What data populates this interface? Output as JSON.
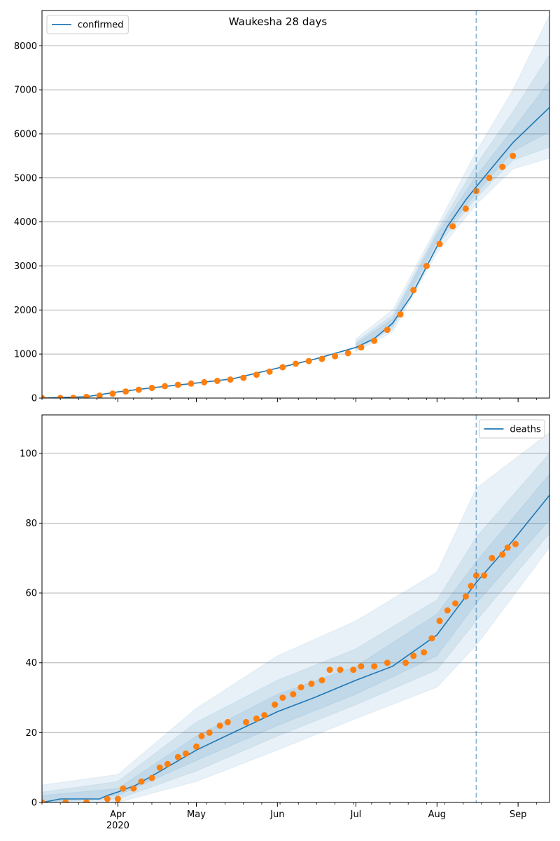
{
  "chart_data": [
    {
      "type": "line",
      "title": "Waukesha 28 days",
      "legend": {
        "label": "confirmed",
        "placement": "top-left"
      },
      "x_ticks": [],
      "y_ticks": [
        "0",
        "1000",
        "2000",
        "3000",
        "4000",
        "5000",
        "6000",
        "7000",
        "8000"
      ],
      "ylim": [
        0,
        8800
      ],
      "grid": "horizontal",
      "vline_date": "2020-08-16",
      "colors": {
        "model": "#1f77b4",
        "observed": "#ff7f0e",
        "band": "#1f77b4"
      },
      "model_line": [
        [
          "2020-03-03",
          0
        ],
        [
          "2020-03-20",
          30
        ],
        [
          "2020-04-01",
          140
        ],
        [
          "2020-04-15",
          240
        ],
        [
          "2020-05-01",
          340
        ],
        [
          "2020-05-15",
          440
        ],
        [
          "2020-06-01",
          680
        ],
        [
          "2020-06-15",
          880
        ],
        [
          "2020-07-01",
          1150
        ],
        [
          "2020-07-08",
          1350
        ],
        [
          "2020-07-15",
          1700
        ],
        [
          "2020-07-22",
          2300
        ],
        [
          "2020-07-29",
          3100
        ],
        [
          "2020-08-05",
          3900
        ],
        [
          "2020-08-12",
          4500
        ],
        [
          "2020-08-16",
          4800
        ],
        [
          "2020-08-23",
          5300
        ],
        [
          "2020-08-30",
          5800
        ],
        [
          "2020-09-06",
          6200
        ],
        [
          "2020-09-13",
          6600
        ]
      ],
      "bands": [
        {
          "lower": [
            [
              "2020-07-01",
              1050
            ],
            [
              "2020-07-15",
              1500
            ],
            [
              "2020-08-01",
              3300
            ],
            [
              "2020-08-16",
              4400
            ],
            [
              "2020-08-30",
              5200
            ],
            [
              "2020-09-13",
              5450
            ]
          ],
          "upper": [
            [
              "2020-07-01",
              1350
            ],
            [
              "2020-07-15",
              2000
            ],
            [
              "2020-08-01",
              3900
            ],
            [
              "2020-08-16",
              5600
            ],
            [
              "2020-08-30",
              7000
            ],
            [
              "2020-09-13",
              8700
            ]
          ]
        },
        {
          "lower": [
            [
              "2020-07-01",
              1090
            ],
            [
              "2020-07-15",
              1580
            ],
            [
              "2020-08-01",
              3450
            ],
            [
              "2020-08-16",
              4550
            ],
            [
              "2020-08-30",
              5400
            ],
            [
              "2020-09-13",
              5700
            ]
          ],
          "upper": [
            [
              "2020-07-01",
              1280
            ],
            [
              "2020-07-15",
              1880
            ],
            [
              "2020-08-01",
              3800
            ],
            [
              "2020-08-16",
              5300
            ],
            [
              "2020-08-30",
              6500
            ],
            [
              "2020-09-13",
              7800
            ]
          ]
        },
        {
          "lower": [
            [
              "2020-07-01",
              1120
            ],
            [
              "2020-07-15",
              1640
            ],
            [
              "2020-08-01",
              3550
            ],
            [
              "2020-08-16",
              4650
            ],
            [
              "2020-08-30",
              5600
            ],
            [
              "2020-09-13",
              6050
            ]
          ],
          "upper": [
            [
              "2020-07-01",
              1230
            ],
            [
              "2020-07-15",
              1800
            ],
            [
              "2020-08-01",
              3720
            ],
            [
              "2020-08-16",
              5050
            ],
            [
              "2020-08-30",
              6100
            ],
            [
              "2020-09-13",
              7200
            ]
          ]
        }
      ],
      "observed": [
        [
          "2020-03-03",
          0
        ],
        [
          "2020-03-10",
          2
        ],
        [
          "2020-03-15",
          5
        ],
        [
          "2020-03-20",
          25
        ],
        [
          "2020-03-25",
          55
        ],
        [
          "2020-03-30",
          100
        ],
        [
          "2020-04-04",
          150
        ],
        [
          "2020-04-09",
          190
        ],
        [
          "2020-04-14",
          230
        ],
        [
          "2020-04-19",
          270
        ],
        [
          "2020-04-24",
          300
        ],
        [
          "2020-04-29",
          330
        ],
        [
          "2020-05-04",
          360
        ],
        [
          "2020-05-09",
          390
        ],
        [
          "2020-05-14",
          420
        ],
        [
          "2020-05-19",
          460
        ],
        [
          "2020-05-24",
          530
        ],
        [
          "2020-05-29",
          600
        ],
        [
          "2020-06-03",
          700
        ],
        [
          "2020-06-08",
          780
        ],
        [
          "2020-06-13",
          840
        ],
        [
          "2020-06-18",
          890
        ],
        [
          "2020-06-23",
          950
        ],
        [
          "2020-06-28",
          1020
        ],
        [
          "2020-07-03",
          1150
        ],
        [
          "2020-07-08",
          1300
        ],
        [
          "2020-07-13",
          1550
        ],
        [
          "2020-07-18",
          1900
        ],
        [
          "2020-07-23",
          2450
        ],
        [
          "2020-07-28",
          3000
        ],
        [
          "2020-08-02",
          3500
        ],
        [
          "2020-08-07",
          3900
        ],
        [
          "2020-08-12",
          4300
        ],
        [
          "2020-08-16",
          4700
        ],
        [
          "2020-08-21",
          5000
        ],
        [
          "2020-08-26",
          5250
        ],
        [
          "2020-08-30",
          5500
        ]
      ]
    },
    {
      "type": "line",
      "title": "",
      "legend": {
        "label": "deaths",
        "placement": "top-right"
      },
      "x_ticks": [
        "Apr",
        "May",
        "Jun",
        "Jul",
        "Aug",
        "Sep"
      ],
      "x_ticks_sub": "2020",
      "y_ticks": [
        "0",
        "20",
        "40",
        "60",
        "80",
        "100"
      ],
      "ylim": [
        0,
        111
      ],
      "grid": "horizontal",
      "vline_date": "2020-08-16",
      "colors": {
        "model": "#1f77b4",
        "observed": "#ff7f0e",
        "band": "#1f77b4"
      },
      "model_line": [
        [
          "2020-03-03",
          0
        ],
        [
          "2020-03-10",
          1
        ],
        [
          "2020-03-25",
          1
        ],
        [
          "2020-03-28",
          2
        ],
        [
          "2020-04-01",
          3
        ],
        [
          "2020-04-08",
          5
        ],
        [
          "2020-04-15",
          8
        ],
        [
          "2020-05-01",
          15
        ],
        [
          "2020-05-15",
          20
        ],
        [
          "2020-06-01",
          26
        ],
        [
          "2020-06-15",
          30
        ],
        [
          "2020-07-01",
          35
        ],
        [
          "2020-07-15",
          39
        ],
        [
          "2020-08-01",
          48
        ],
        [
          "2020-08-16",
          63
        ],
        [
          "2020-08-30",
          75
        ],
        [
          "2020-09-13",
          88
        ]
      ],
      "bands": [
        {
          "lower": [
            [
              "2020-03-03",
              0
            ],
            [
              "2020-04-01",
              0
            ],
            [
              "2020-05-01",
              6
            ],
            [
              "2020-06-01",
              15
            ],
            [
              "2020-07-01",
              24
            ],
            [
              "2020-08-01",
              33
            ],
            [
              "2020-08-16",
              45
            ],
            [
              "2020-09-13",
              73
            ]
          ],
          "upper": [
            [
              "2020-03-03",
              5
            ],
            [
              "2020-04-01",
              8
            ],
            [
              "2020-05-01",
              27
            ],
            [
              "2020-06-01",
              42
            ],
            [
              "2020-07-01",
              52
            ],
            [
              "2020-08-01",
              66
            ],
            [
              "2020-08-16",
              90
            ],
            [
              "2020-09-13",
              106
            ]
          ]
        },
        {
          "lower": [
            [
              "2020-03-03",
              0
            ],
            [
              "2020-04-01",
              1
            ],
            [
              "2020-05-01",
              9
            ],
            [
              "2020-06-01",
              19
            ],
            [
              "2020-07-01",
              28
            ],
            [
              "2020-08-01",
              38
            ],
            [
              "2020-08-16",
              52
            ],
            [
              "2020-09-13",
              77
            ]
          ],
          "upper": [
            [
              "2020-03-03",
              3
            ],
            [
              "2020-04-01",
              6
            ],
            [
              "2020-05-01",
              23
            ],
            [
              "2020-06-01",
              35
            ],
            [
              "2020-07-01",
              44
            ],
            [
              "2020-08-01",
              58
            ],
            [
              "2020-08-16",
              76
            ],
            [
              "2020-09-13",
              100
            ]
          ]
        },
        {
          "lower": [
            [
              "2020-03-03",
              0
            ],
            [
              "2020-04-01",
              2
            ],
            [
              "2020-05-01",
              12
            ],
            [
              "2020-06-01",
              22
            ],
            [
              "2020-07-01",
              31
            ],
            [
              "2020-08-01",
              42
            ],
            [
              "2020-08-16",
              57
            ],
            [
              "2020-09-13",
              81
            ]
          ],
          "upper": [
            [
              "2020-03-03",
              2
            ],
            [
              "2020-04-01",
              4
            ],
            [
              "2020-05-01",
              19
            ],
            [
              "2020-06-01",
              31
            ],
            [
              "2020-07-01",
              39
            ],
            [
              "2020-08-01",
              54
            ],
            [
              "2020-08-16",
              69
            ],
            [
              "2020-09-13",
              94
            ]
          ]
        }
      ],
      "observed": [
        [
          "2020-03-03",
          0
        ],
        [
          "2020-03-12",
          0
        ],
        [
          "2020-03-20",
          0
        ],
        [
          "2020-03-28",
          1
        ],
        [
          "2020-04-01",
          1
        ],
        [
          "2020-04-03",
          4
        ],
        [
          "2020-04-07",
          4
        ],
        [
          "2020-04-10",
          6
        ],
        [
          "2020-04-14",
          7
        ],
        [
          "2020-04-17",
          10
        ],
        [
          "2020-04-20",
          11
        ],
        [
          "2020-04-24",
          13
        ],
        [
          "2020-04-27",
          14
        ],
        [
          "2020-05-01",
          16
        ],
        [
          "2020-05-03",
          19
        ],
        [
          "2020-05-06",
          20
        ],
        [
          "2020-05-10",
          22
        ],
        [
          "2020-05-13",
          23
        ],
        [
          "2020-05-20",
          23
        ],
        [
          "2020-05-24",
          24
        ],
        [
          "2020-05-27",
          25
        ],
        [
          "2020-05-31",
          28
        ],
        [
          "2020-06-03",
          30
        ],
        [
          "2020-06-07",
          31
        ],
        [
          "2020-06-10",
          33
        ],
        [
          "2020-06-14",
          34
        ],
        [
          "2020-06-18",
          35
        ],
        [
          "2020-06-21",
          38
        ],
        [
          "2020-06-25",
          38
        ],
        [
          "2020-06-30",
          38
        ],
        [
          "2020-07-03",
          39
        ],
        [
          "2020-07-08",
          39
        ],
        [
          "2020-07-13",
          40
        ],
        [
          "2020-07-20",
          40
        ],
        [
          "2020-07-23",
          42
        ],
        [
          "2020-07-27",
          43
        ],
        [
          "2020-07-30",
          47
        ],
        [
          "2020-08-02",
          52
        ],
        [
          "2020-08-05",
          55
        ],
        [
          "2020-08-08",
          57
        ],
        [
          "2020-08-12",
          59
        ],
        [
          "2020-08-14",
          62
        ],
        [
          "2020-08-16",
          65
        ],
        [
          "2020-08-19",
          65
        ],
        [
          "2020-08-22",
          70
        ],
        [
          "2020-08-26",
          71
        ],
        [
          "2020-08-28",
          73
        ],
        [
          "2020-08-31",
          74
        ]
      ]
    }
  ]
}
